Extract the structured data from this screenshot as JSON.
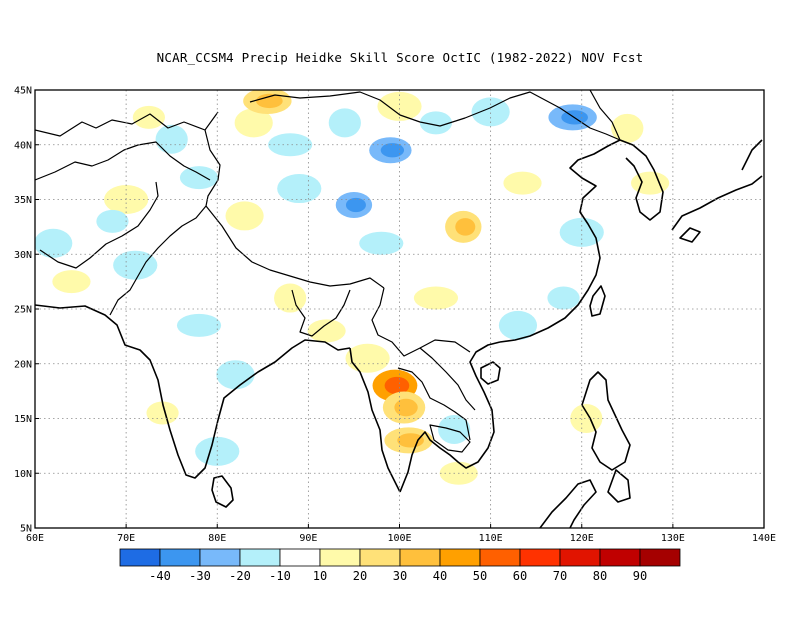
{
  "title": "NCAR_CCSM4 Precip Heidke Skill Score OctIC (1982-2022) NOV Fcst",
  "map": {
    "lon_range": [
      60,
      140
    ],
    "lat_range": [
      5,
      45
    ],
    "lon_ticks": [
      "60E",
      "70E",
      "80E",
      "90E",
      "100E",
      "110E",
      "120E",
      "130E",
      "140E"
    ],
    "lat_ticks": [
      "45N",
      "40N",
      "35N",
      "30N",
      "25N",
      "20N",
      "15N",
      "10N",
      "5N"
    ],
    "gridlines": "dotted"
  },
  "colorbar": {
    "colors": [
      "#1e6ce4",
      "#3c96f0",
      "#78b9fa",
      "#b4f0fa",
      "#ffffff",
      "#fffaaa",
      "#ffe178",
      "#ffc03c",
      "#ffa000",
      "#ff6000",
      "#ff3200",
      "#e11400",
      "#c00000",
      "#a50000"
    ],
    "labels": [
      "-40",
      "-30",
      "-20",
      "-10",
      "10",
      "20",
      "30",
      "40",
      "50",
      "60",
      "70",
      "80",
      "90"
    ]
  },
  "anomalies": [
    {
      "lon": 72.5,
      "lat": 42.5,
      "level": 1
    },
    {
      "lon": 84,
      "lat": 42,
      "level": 1
    },
    {
      "lon": 85.5,
      "lat": 44,
      "level": 2
    },
    {
      "lon": 75,
      "lat": 40.5,
      "level": -1
    },
    {
      "lon": 78,
      "lat": 37,
      "level": -1
    },
    {
      "lon": 70,
      "lat": 35,
      "level": 1
    },
    {
      "lon": 68.5,
      "lat": 33,
      "level": -1
    },
    {
      "lon": 62,
      "lat": 31,
      "level": -1
    },
    {
      "lon": 88,
      "lat": 40,
      "level": -1
    },
    {
      "lon": 94,
      "lat": 42,
      "level": -1
    },
    {
      "lon": 99,
      "lat": 39.5,
      "level": -2
    },
    {
      "lon": 100,
      "lat": 43.5,
      "level": 1
    },
    {
      "lon": 104,
      "lat": 42,
      "level": -1
    },
    {
      "lon": 110,
      "lat": 43,
      "level": -1
    },
    {
      "lon": 119,
      "lat": 42.5,
      "level": -2
    },
    {
      "lon": 125,
      "lat": 41.5,
      "level": 1
    },
    {
      "lon": 127.5,
      "lat": 36.5,
      "level": 1
    },
    {
      "lon": 89,
      "lat": 36,
      "level": -1
    },
    {
      "lon": 95,
      "lat": 34.5,
      "level": -2
    },
    {
      "lon": 83,
      "lat": 33.5,
      "level": 1
    },
    {
      "lon": 98,
      "lat": 31,
      "level": -1
    },
    {
      "lon": 107,
      "lat": 32.5,
      "level": 2
    },
    {
      "lon": 113.5,
      "lat": 36.5,
      "level": 1
    },
    {
      "lon": 120,
      "lat": 32,
      "level": -1
    },
    {
      "lon": 118,
      "lat": 26,
      "level": -1
    },
    {
      "lon": 113,
      "lat": 23.5,
      "level": -1
    },
    {
      "lon": 104,
      "lat": 26,
      "level": 1
    },
    {
      "lon": 88,
      "lat": 26,
      "level": 1
    },
    {
      "lon": 92,
      "lat": 23,
      "level": 1
    },
    {
      "lon": 96.5,
      "lat": 20.5,
      "level": 1
    },
    {
      "lon": 99.5,
      "lat": 18,
      "level": 4
    },
    {
      "lon": 100.5,
      "lat": 16,
      "level": 2
    },
    {
      "lon": 101,
      "lat": 13,
      "level": 2
    },
    {
      "lon": 106,
      "lat": 14,
      "level": -1
    },
    {
      "lon": 106.5,
      "lat": 10,
      "level": 1
    },
    {
      "lon": 80,
      "lat": 12,
      "level": -1
    },
    {
      "lon": 74,
      "lat": 15.5,
      "level": 1
    },
    {
      "lon": 82,
      "lat": 19,
      "level": -1
    },
    {
      "lon": 78,
      "lat": 23.5,
      "level": -1
    },
    {
      "lon": 120.5,
      "lat": 15,
      "level": 1
    },
    {
      "lon": 64,
      "lat": 27.5,
      "level": 1
    },
    {
      "lon": 71,
      "lat": 29,
      "level": -1
    }
  ]
}
